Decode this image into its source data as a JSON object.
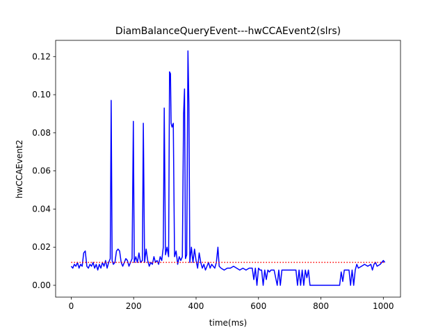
{
  "chart_data": {
    "type": "line",
    "title": "DiamBalanceQueryEvent---hwCCAEvent2(slrs)",
    "x_label": "time(ms)",
    "y_label": "hwCCAEvent2",
    "xlim": [
      -50,
      1055
    ],
    "ylim": [
      -0.0062,
      0.1285
    ],
    "xticks": [
      0,
      200,
      400,
      600,
      800,
      1000
    ],
    "yticks": [
      {
        "value": 0,
        "label": "0.00"
      },
      {
        "value": 0.02,
        "label": "0.02"
      },
      {
        "value": 0.04,
        "label": "0.04"
      },
      {
        "value": 0.06,
        "label": "0.06"
      },
      {
        "value": 0.08,
        "label": "0.08"
      },
      {
        "value": 0.1,
        "label": "0.10"
      },
      {
        "value": 0.12,
        "label": "0.12"
      }
    ],
    "grid": false,
    "series": [
      {
        "color": "#0000ff",
        "style": "solid",
        "x": [
          0,
          5,
          10,
          15,
          20,
          25,
          30,
          35,
          40,
          45,
          50,
          55,
          60,
          65,
          70,
          75,
          80,
          85,
          90,
          95,
          100,
          105,
          110,
          115,
          120,
          125,
          128,
          131,
          135,
          140,
          145,
          150,
          155,
          160,
          165,
          170,
          175,
          180,
          185,
          190,
          195,
          199,
          202,
          207,
          212,
          217,
          222,
          228,
          231,
          235,
          240,
          245,
          250,
          255,
          260,
          265,
          270,
          275,
          280,
          285,
          290,
          295,
          298,
          302,
          307,
          312,
          315,
          318,
          320,
          323,
          327,
          331,
          336,
          341,
          346,
          351,
          356,
          360,
          363,
          366,
          370,
          374,
          377,
          380,
          385,
          390,
          395,
          400,
          405,
          410,
          415,
          420,
          425,
          430,
          435,
          440,
          445,
          450,
          455,
          460,
          465,
          470,
          474,
          480,
          490,
          500,
          510,
          520,
          530,
          540,
          550,
          560,
          570,
          580,
          585,
          590,
          595,
          600,
          605,
          610,
          615,
          620,
          625,
          630,
          635,
          640,
          650,
          660,
          665,
          670,
          675,
          680,
          690,
          700,
          710,
          720,
          725,
          730,
          735,
          740,
          745,
          750,
          755,
          760,
          765,
          800,
          840,
          860,
          865,
          870,
          875,
          880,
          890,
          895,
          900,
          905,
          910,
          915,
          920,
          930,
          940,
          950,
          960,
          965,
          970,
          975,
          980,
          990,
          1000,
          1005
        ],
        "values": [
          0.01,
          0.009,
          0.011,
          0.01,
          0.012,
          0.009,
          0.011,
          0.01,
          0.017,
          0.018,
          0.01,
          0.009,
          0.011,
          0.01,
          0.012,
          0.009,
          0.011,
          0.008,
          0.011,
          0.009,
          0.012,
          0.01,
          0.013,
          0.009,
          0.012,
          0.014,
          0.097,
          0.013,
          0.011,
          0.012,
          0.018,
          0.019,
          0.018,
          0.012,
          0.01,
          0.012,
          0.014,
          0.013,
          0.01,
          0.012,
          0.014,
          0.086,
          0.012,
          0.015,
          0.012,
          0.017,
          0.012,
          0.013,
          0.085,
          0.012,
          0.019,
          0.013,
          0.01,
          0.012,
          0.011,
          0.015,
          0.012,
          0.013,
          0.011,
          0.015,
          0.013,
          0.02,
          0.093,
          0.016,
          0.02,
          0.015,
          0.112,
          0.111,
          0.085,
          0.083,
          0.085,
          0.015,
          0.018,
          0.011,
          0.015,
          0.013,
          0.015,
          0.09,
          0.103,
          0.014,
          0.016,
          0.123,
          0.095,
          0.012,
          0.02,
          0.012,
          0.019,
          0.013,
          0.009,
          0.017,
          0.012,
          0.009,
          0.011,
          0.008,
          0.01,
          0.012,
          0.009,
          0.011,
          0.01,
          0.009,
          0.012,
          0.02,
          0.01,
          0.009,
          0.008,
          0.009,
          0.009,
          0.01,
          0.009,
          0.008,
          0.009,
          0.008,
          0.009,
          0.009,
          0.003,
          0.009,
          0.0,
          0.009,
          0.008,
          0.008,
          0.0,
          0.008,
          0.003,
          0.008,
          0.007,
          0.008,
          0.008,
          0.0,
          0.008,
          0.0,
          0.008,
          0.008,
          0.008,
          0.008,
          0.008,
          0.008,
          0.0,
          0.008,
          0.0,
          0.008,
          0.0,
          0.008,
          0.004,
          0.008,
          0.0,
          0.0,
          0.0,
          0.0,
          0.007,
          0.002,
          0.008,
          0.008,
          0.008,
          0.0,
          0.008,
          0.0,
          0.008,
          0.011,
          0.009,
          0.01,
          0.011,
          0.01,
          0.011,
          0.008,
          0.011,
          0.012,
          0.01,
          0.011,
          0.013,
          0.012
        ]
      },
      {
        "color": "#ff0000",
        "style": "dotted",
        "x": [
          0,
          1005
        ],
        "values": [
          0.012,
          0.012
        ]
      }
    ]
  }
}
